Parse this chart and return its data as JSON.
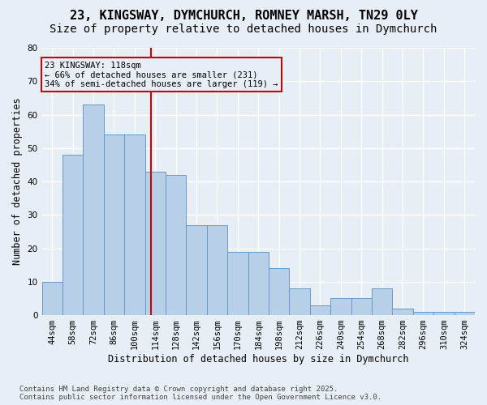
{
  "title_line1": "23, KINGSWAY, DYMCHURCH, ROMNEY MARSH, TN29 0LY",
  "title_line2": "Size of property relative to detached houses in Dymchurch",
  "xlabel": "Distribution of detached houses by size in Dymchurch",
  "ylabel": "Number of detached properties",
  "categories": [
    "44sqm",
    "58sqm",
    "72sqm",
    "86sqm",
    "100sqm",
    "114sqm",
    "128sqm",
    "142sqm",
    "156sqm",
    "170sqm",
    "184sqm",
    "198sqm",
    "212sqm",
    "226sqm",
    "240sqm",
    "254sqm",
    "268sqm",
    "282sqm",
    "296sqm",
    "310sqm",
    "324sqm"
  ],
  "values": [
    10,
    48,
    63,
    54,
    54,
    43,
    42,
    27,
    27,
    19,
    19,
    14,
    8,
    3,
    5,
    5,
    8,
    2,
    1,
    1,
    1
  ],
  "bin_edges": [
    44,
    58,
    72,
    86,
    100,
    114,
    128,
    142,
    156,
    170,
    184,
    198,
    212,
    226,
    240,
    254,
    268,
    282,
    296,
    310,
    324,
    338
  ],
  "bar_color": "#b8cfe8",
  "bar_edge_color": "#6699cc",
  "bg_color": "#e8eef5",
  "grid_color": "#ffffff",
  "annotation_text_line1": "23 KINGSWAY: 118sqm",
  "annotation_text_line2": "← 66% of detached houses are smaller (231)",
  "annotation_text_line3": "34% of semi-detached houses are larger (119) →",
  "vline_x": 118,
  "vline_color": "#cc0000",
  "annotation_box_color": "#cc0000",
  "ylim": [
    0,
    80
  ],
  "yticks": [
    0,
    10,
    20,
    30,
    40,
    50,
    60,
    70,
    80
  ],
  "footer_line1": "Contains HM Land Registry data © Crown copyright and database right 2025.",
  "footer_line2": "Contains public sector information licensed under the Open Government Licence v3.0.",
  "title_fontsize": 11,
  "subtitle_fontsize": 10,
  "axis_label_fontsize": 8.5,
  "tick_fontsize": 7.5,
  "annotation_fontsize": 7.5,
  "footer_fontsize": 6.5
}
